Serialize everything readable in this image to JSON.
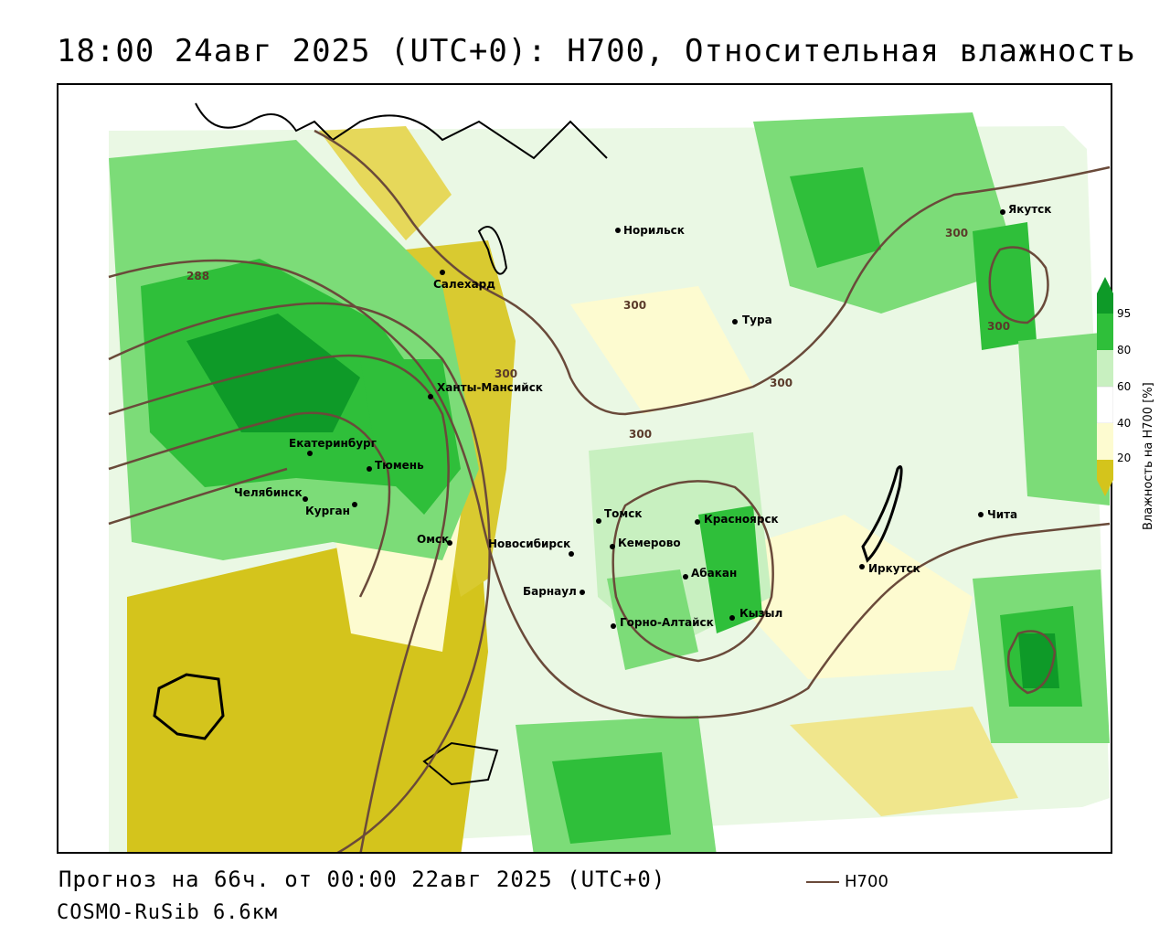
{
  "title": "18:00 24авг 2025 (UTC+0): H700, Относительная влажность",
  "footer": {
    "forecast": "Прогноз на 66ч. от 00:00 22авг 2025 (UTC+0)",
    "model": "COSMO-RuSib 6.6км"
  },
  "legend": {
    "h700_label": "H700",
    "h700_color": "#6a4a3a"
  },
  "colorbar": {
    "title": "Влажность на H700 [%]",
    "ticks": [
      "95",
      "80",
      "60",
      "40",
      "20"
    ],
    "colors": {
      "very_dry": "#d4c41c",
      "dry": "#f0e68c",
      "light": "#fdfbd0",
      "neutral": "#ffffff",
      "moist": "#c8f0c0",
      "wet": "#7cdc78",
      "very_wet": "#2fbf3a",
      "saturated": "#0e9a28"
    }
  },
  "cities": [
    {
      "name": "Норильск"
    },
    {
      "name": "Якутск"
    },
    {
      "name": "Салехард"
    },
    {
      "name": "Тура"
    },
    {
      "name": "Ханты-Мансийск"
    },
    {
      "name": "Екатеринбург"
    },
    {
      "name": "Тюмень"
    },
    {
      "name": "Челябинск"
    },
    {
      "name": "Курган"
    },
    {
      "name": "Омск"
    },
    {
      "name": "Томск"
    },
    {
      "name": "Красноярск"
    },
    {
      "name": "Новосибирск"
    },
    {
      "name": "Кемерово"
    },
    {
      "name": "Абакан"
    },
    {
      "name": "Барнаул"
    },
    {
      "name": "Иркутск"
    },
    {
      "name": "Чита"
    },
    {
      "name": "Горно-Алтайск"
    },
    {
      "name": "Кызыл"
    }
  ],
  "contour_labels": [
    "288",
    "300",
    "300",
    "300",
    "300",
    "300",
    "300"
  ]
}
